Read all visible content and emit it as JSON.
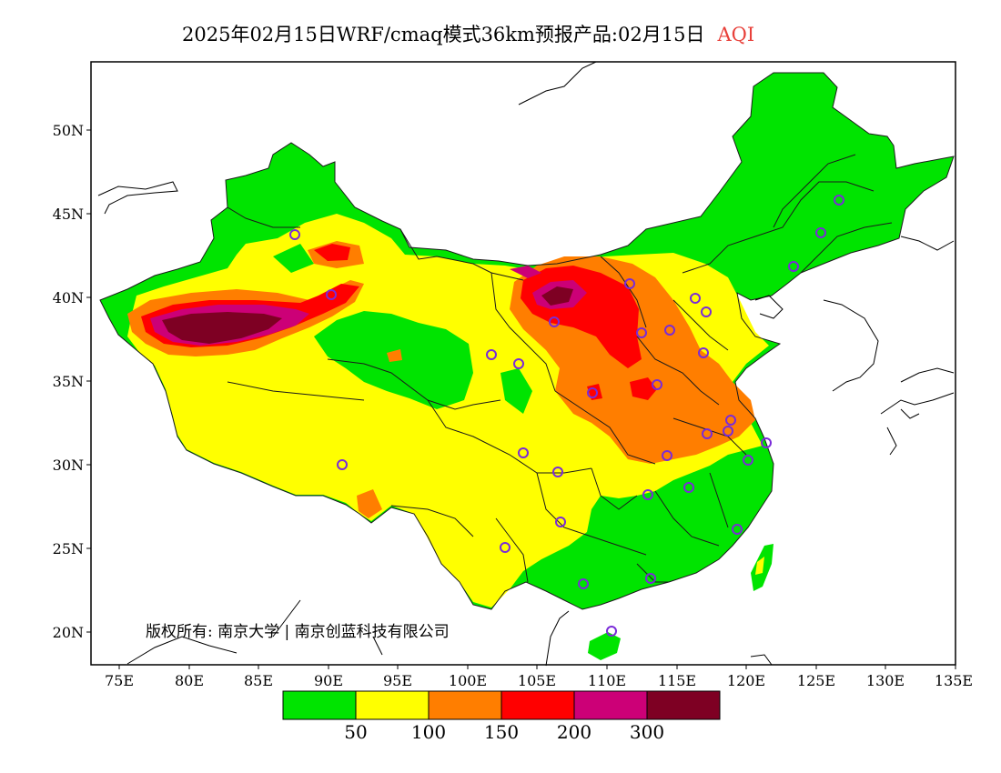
{
  "title": {
    "main": "2025年02月15日WRF/cmaq模式36km预报产品:02月15日",
    "variable": "AQI"
  },
  "axes": {
    "lon_ticks": [
      "75E",
      "80E",
      "85E",
      "90E",
      "95E",
      "100E",
      "105E",
      "110E",
      "115E",
      "120E",
      "125E",
      "130E",
      "135E"
    ],
    "lat_ticks": [
      "50N",
      "45N",
      "40N",
      "35N",
      "30N",
      "25N",
      "20N"
    ]
  },
  "legend": {
    "colors": [
      "#00e400",
      "#ffff00",
      "#ff7e00",
      "#ff0000",
      "#cc0077",
      "#7e0023"
    ],
    "labels": [
      "50",
      "100",
      "150",
      "200",
      "300"
    ]
  },
  "copyright": "版权所有: 南京大学 | 南京创蓝科技有限公司",
  "station_marker_color": "#7a2bd8"
}
